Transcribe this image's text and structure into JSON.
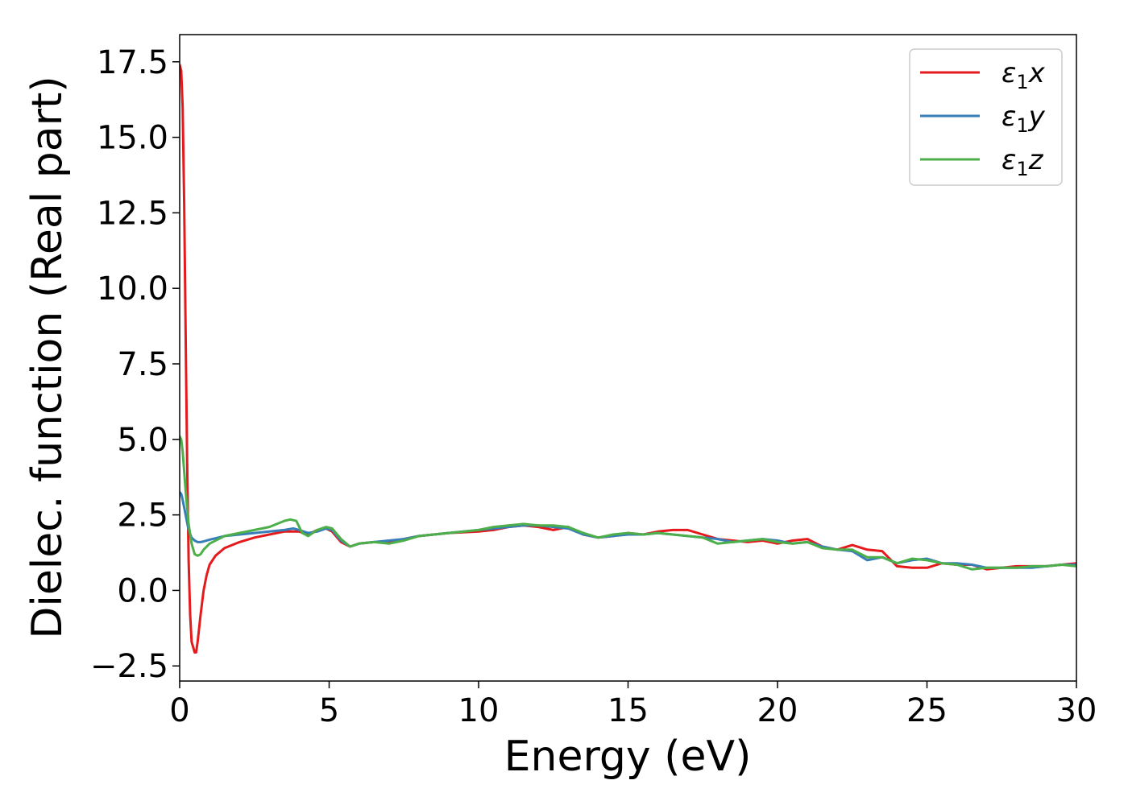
{
  "chart_data": {
    "type": "line",
    "xlabel": "Energy (eV)",
    "ylabel": "Dielec. function (Real part)",
    "xlim": [
      0,
      30
    ],
    "ylim": [
      -3.0,
      18.4
    ],
    "xticks": [
      0,
      5,
      10,
      15,
      20,
      25,
      30
    ],
    "xtick_labels": [
      "0",
      "5",
      "10",
      "15",
      "20",
      "25",
      "30"
    ],
    "yticks": [
      -2.5,
      0.0,
      2.5,
      5.0,
      7.5,
      10.0,
      12.5,
      15.0,
      17.5
    ],
    "ytick_labels": [
      "−2.5",
      "0.0",
      "2.5",
      "5.0",
      "7.5",
      "10.0",
      "12.5",
      "15.0",
      "17.5"
    ],
    "grid": false,
    "legend_position": "top-right",
    "series": [
      {
        "name": "ε₁x",
        "name_base": "ε",
        "name_sub": "1",
        "name_suffix": "x",
        "color": "#e41a1c",
        "x": [
          0.0,
          0.05,
          0.1,
          0.15,
          0.2,
          0.25,
          0.3,
          0.35,
          0.4,
          0.5,
          0.55,
          0.6,
          0.7,
          0.8,
          0.9,
          1.0,
          1.2,
          1.5,
          2.0,
          2.5,
          3.0,
          3.5,
          3.8,
          4.0,
          4.3,
          4.6,
          4.9,
          5.1,
          5.4,
          5.7,
          6.0,
          6.5,
          7.0,
          7.5,
          8.0,
          9.0,
          10.0,
          10.5,
          11.0,
          11.5,
          12.0,
          12.5,
          13.0,
          13.5,
          14.0,
          14.5,
          15.0,
          15.5,
          16.0,
          16.5,
          17.0,
          17.5,
          18.0,
          18.5,
          19.0,
          19.5,
          20.0,
          20.5,
          21.0,
          21.5,
          22.0,
          22.5,
          23.0,
          23.5,
          24.0,
          24.5,
          25.0,
          25.5,
          26.0,
          26.5,
          27.0,
          27.5,
          28.0,
          28.5,
          29.0,
          29.5,
          30.0
        ],
        "y": [
          17.4,
          17.2,
          16.0,
          12.8,
          8.5,
          4.2,
          1.0,
          -0.8,
          -1.7,
          -2.05,
          -2.05,
          -1.7,
          -0.8,
          0.0,
          0.5,
          0.85,
          1.15,
          1.4,
          1.6,
          1.75,
          1.85,
          1.95,
          1.95,
          1.95,
          1.85,
          2.0,
          2.05,
          1.95,
          1.6,
          1.45,
          1.55,
          1.6,
          1.6,
          1.7,
          1.8,
          1.9,
          1.95,
          2.0,
          2.1,
          2.15,
          2.1,
          2.0,
          2.1,
          1.85,
          1.75,
          1.8,
          1.9,
          1.85,
          1.95,
          2.0,
          2.0,
          1.85,
          1.7,
          1.65,
          1.6,
          1.65,
          1.55,
          1.65,
          1.7,
          1.45,
          1.35,
          1.5,
          1.35,
          1.3,
          0.8,
          0.75,
          0.75,
          0.9,
          0.85,
          0.85,
          0.7,
          0.75,
          0.8,
          0.8,
          0.8,
          0.85,
          0.9
        ]
      },
      {
        "name": "ε₁y",
        "name_base": "ε",
        "name_sub": "1",
        "name_suffix": "y",
        "color": "#377eb8",
        "x": [
          0.0,
          0.05,
          0.1,
          0.2,
          0.3,
          0.4,
          0.5,
          0.6,
          0.7,
          0.8,
          1.0,
          1.5,
          2.0,
          2.5,
          3.0,
          3.5,
          3.8,
          4.0,
          4.3,
          4.6,
          4.9,
          5.1,
          5.4,
          5.7,
          6.0,
          6.5,
          7.0,
          7.5,
          8.0,
          9.0,
          10.0,
          10.5,
          11.0,
          11.5,
          12.0,
          12.5,
          13.0,
          13.5,
          14.0,
          14.5,
          15.0,
          15.5,
          16.0,
          16.5,
          17.0,
          17.5,
          18.0,
          18.5,
          19.0,
          19.5,
          20.0,
          20.5,
          21.0,
          21.5,
          22.0,
          22.5,
          23.0,
          23.5,
          24.0,
          24.5,
          25.0,
          25.5,
          26.0,
          26.5,
          27.0,
          27.5,
          28.0,
          28.5,
          29.0,
          29.5,
          30.0
        ],
        "y": [
          3.25,
          3.2,
          3.0,
          2.5,
          2.0,
          1.75,
          1.65,
          1.6,
          1.6,
          1.62,
          1.68,
          1.8,
          1.85,
          1.9,
          1.95,
          2.0,
          2.05,
          2.0,
          1.9,
          1.95,
          2.05,
          2.0,
          1.65,
          1.45,
          1.55,
          1.6,
          1.65,
          1.7,
          1.8,
          1.9,
          2.0,
          2.05,
          2.1,
          2.15,
          2.15,
          2.1,
          2.05,
          1.85,
          1.75,
          1.8,
          1.85,
          1.85,
          1.9,
          1.85,
          1.8,
          1.75,
          1.7,
          1.6,
          1.65,
          1.7,
          1.65,
          1.55,
          1.6,
          1.45,
          1.35,
          1.3,
          1.0,
          1.1,
          0.9,
          1.0,
          1.05,
          0.9,
          0.9,
          0.85,
          0.75,
          0.75,
          0.75,
          0.75,
          0.8,
          0.85,
          0.85
        ]
      },
      {
        "name": "ε₁z",
        "name_base": "ε",
        "name_sub": "1",
        "name_suffix": "z",
        "color": "#4daf4a",
        "x": [
          0.0,
          0.05,
          0.1,
          0.2,
          0.3,
          0.4,
          0.5,
          0.6,
          0.7,
          0.8,
          1.0,
          1.5,
          2.0,
          2.5,
          3.0,
          3.5,
          3.7,
          3.9,
          4.1,
          4.3,
          4.6,
          4.9,
          5.1,
          5.4,
          5.7,
          6.0,
          6.5,
          7.0,
          7.5,
          8.0,
          9.0,
          10.0,
          10.5,
          11.0,
          11.5,
          12.0,
          12.5,
          13.0,
          13.5,
          14.0,
          14.5,
          15.0,
          15.5,
          16.0,
          16.5,
          17.0,
          17.5,
          18.0,
          18.5,
          19.0,
          19.5,
          20.0,
          20.5,
          21.0,
          21.5,
          22.0,
          22.5,
          23.0,
          23.5,
          24.0,
          24.5,
          25.0,
          25.5,
          26.0,
          26.5,
          27.0,
          27.5,
          28.0,
          28.5,
          29.0,
          29.5,
          30.0
        ],
        "y": [
          5.1,
          5.0,
          4.6,
          3.3,
          2.2,
          1.55,
          1.2,
          1.15,
          1.2,
          1.35,
          1.55,
          1.8,
          1.9,
          2.0,
          2.1,
          2.3,
          2.35,
          2.3,
          1.9,
          1.8,
          2.0,
          2.1,
          2.05,
          1.7,
          1.45,
          1.55,
          1.6,
          1.55,
          1.65,
          1.8,
          1.9,
          2.0,
          2.1,
          2.15,
          2.2,
          2.15,
          2.15,
          2.1,
          1.9,
          1.75,
          1.85,
          1.9,
          1.85,
          1.9,
          1.85,
          1.8,
          1.75,
          1.55,
          1.6,
          1.65,
          1.7,
          1.6,
          1.55,
          1.6,
          1.4,
          1.35,
          1.35,
          1.1,
          1.1,
          0.9,
          1.05,
          1.0,
          0.9,
          0.85,
          0.7,
          0.75,
          0.75,
          0.75,
          0.8,
          0.8,
          0.85,
          0.8
        ]
      }
    ]
  }
}
